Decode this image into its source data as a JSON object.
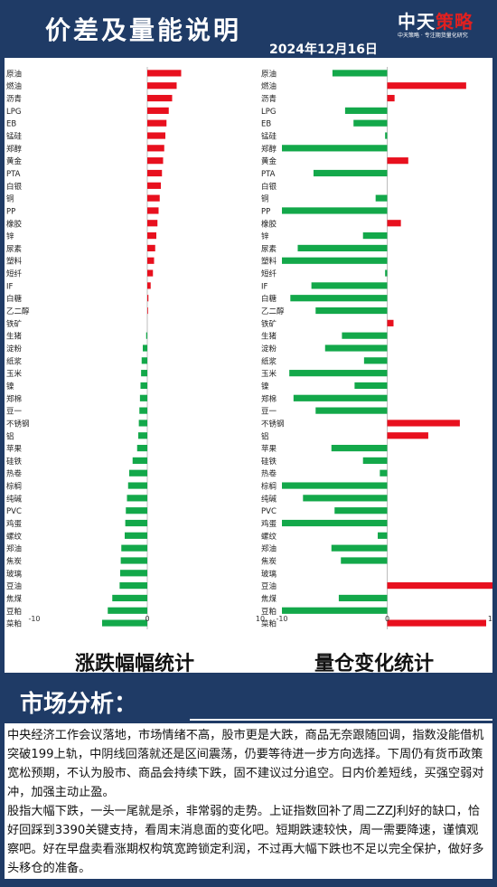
{
  "header": {
    "title": "价差及量能说明",
    "date": "2024年12月16日",
    "logo_main_a": "中天",
    "logo_main_b": "策略",
    "logo_sub": "中天策略 · 专注期货量化研究"
  },
  "chart_data": [
    {
      "type": "bar",
      "orientation": "horizontal",
      "title": "涨跌幅幅统计",
      "xlim": [
        -10,
        10
      ],
      "xticks": [
        -10,
        0,
        10
      ],
      "colors": {
        "positive": "#e8101e",
        "negative": "#13a84a"
      },
      "categories": [
        "原油",
        "燃油",
        "沥青",
        "LPG",
        "EB",
        "锰硅",
        "郑醇",
        "黄金",
        "PTA",
        "白银",
        "铜",
        "PP",
        "橡胶",
        "锌",
        "尿素",
        "塑料",
        "短纤",
        "IF",
        "白糖",
        "乙二醇",
        "铁矿",
        "生猪",
        "淀粉",
        "纸浆",
        "玉米",
        "镍",
        "郑棉",
        "豆一",
        "不锈钢",
        "铝",
        "苹果",
        "硅铁",
        "热卷",
        "棕榈",
        "纯碱",
        "PVC",
        "鸡蛋",
        "螺纹",
        "郑油",
        "焦炭",
        "玻璃",
        "豆油",
        "焦煤",
        "豆粕",
        "菜粕"
      ],
      "values": [
        3.0,
        2.6,
        2.2,
        1.9,
        1.7,
        1.6,
        1.5,
        1.4,
        1.3,
        1.2,
        1.1,
        1.0,
        0.9,
        0.8,
        0.7,
        0.6,
        0.5,
        0.3,
        0.1,
        0.05,
        0.0,
        -0.1,
        -0.4,
        -0.5,
        -0.55,
        -0.6,
        -0.65,
        -0.7,
        -0.75,
        -0.8,
        -0.9,
        -1.3,
        -1.6,
        -1.7,
        -1.8,
        -1.9,
        -1.95,
        -2.0,
        -2.3,
        -2.35,
        -2.4,
        -2.45,
        -3.1,
        -3.5,
        -4.0
      ]
    },
    {
      "type": "bar",
      "orientation": "horizontal",
      "title": "量仓变化统计",
      "xlim": [
        -10,
        10
      ],
      "xticks": [
        -10,
        0,
        10
      ],
      "colors": {
        "positive": "#e8101e",
        "negative": "#13a84a"
      },
      "categories": [
        "原油",
        "燃油",
        "沥青",
        "LPG",
        "EB",
        "锰硅",
        "郑醇",
        "黄金",
        "PTA",
        "白银",
        "铜",
        "PP",
        "橡胶",
        "锌",
        "尿素",
        "塑料",
        "短纤",
        "IF",
        "白糖",
        "乙二醇",
        "铁矿",
        "生猪",
        "淀粉",
        "纸浆",
        "玉米",
        "镍",
        "郑棉",
        "豆一",
        "不锈钢",
        "铝",
        "苹果",
        "硅铁",
        "热卷",
        "棕榈",
        "纯碱",
        "PVC",
        "鸡蛋",
        "螺纹",
        "郑油",
        "焦炭",
        "玻璃",
        "豆油",
        "焦煤",
        "豆粕",
        "菜粕"
      ],
      "values": [
        -5.2,
        7.5,
        0.7,
        -4.0,
        -3.2,
        -0.2,
        -10.0,
        2.0,
        -7.0,
        0.0,
        -1.1,
        -10.0,
        1.3,
        -2.3,
        -8.5,
        -10.0,
        -0.2,
        -7.2,
        -9.2,
        -6.8,
        0.6,
        -4.3,
        -5.9,
        -2.2,
        -9.3,
        -3.1,
        -8.9,
        -6.8,
        6.9,
        3.9,
        -5.3,
        -2.3,
        -0.7,
        -10.0,
        -8.0,
        -5.0,
        -10.0,
        -0.9,
        -5.3,
        -4.4,
        0.0,
        10.0,
        -4.6,
        -10.0,
        9.4
      ]
    }
  ],
  "analysis": {
    "title": "市场分析：",
    "paragraphs": [
      "中央经济工作会议落地，市场情绪不高，股市更是大跌，商品无奈跟随回调，指数没能借机突破199上轨，中阴线回落就还是区间震荡，仍要等待进一步方向选择。下周仍有货币政策宽松预期，不认为股市、商品会持续下跌，固不建议过分追空。日内价差短线，买强空弱对冲，加强主动止盈。",
      "股指大幅下跌，一头一尾就是杀，非常弱的走势。上证指数回补了周二ZZJ利好的缺口，恰好回踩到3390关键支持，看周末消息面的变化吧。短期跌速较快，周一需要降速，谨慎观察吧。好在早盘卖看涨期权构筑宽跨锁定利润，不过再大幅下跌也不足以完全保护，做好多头移仓的准备。"
    ]
  }
}
